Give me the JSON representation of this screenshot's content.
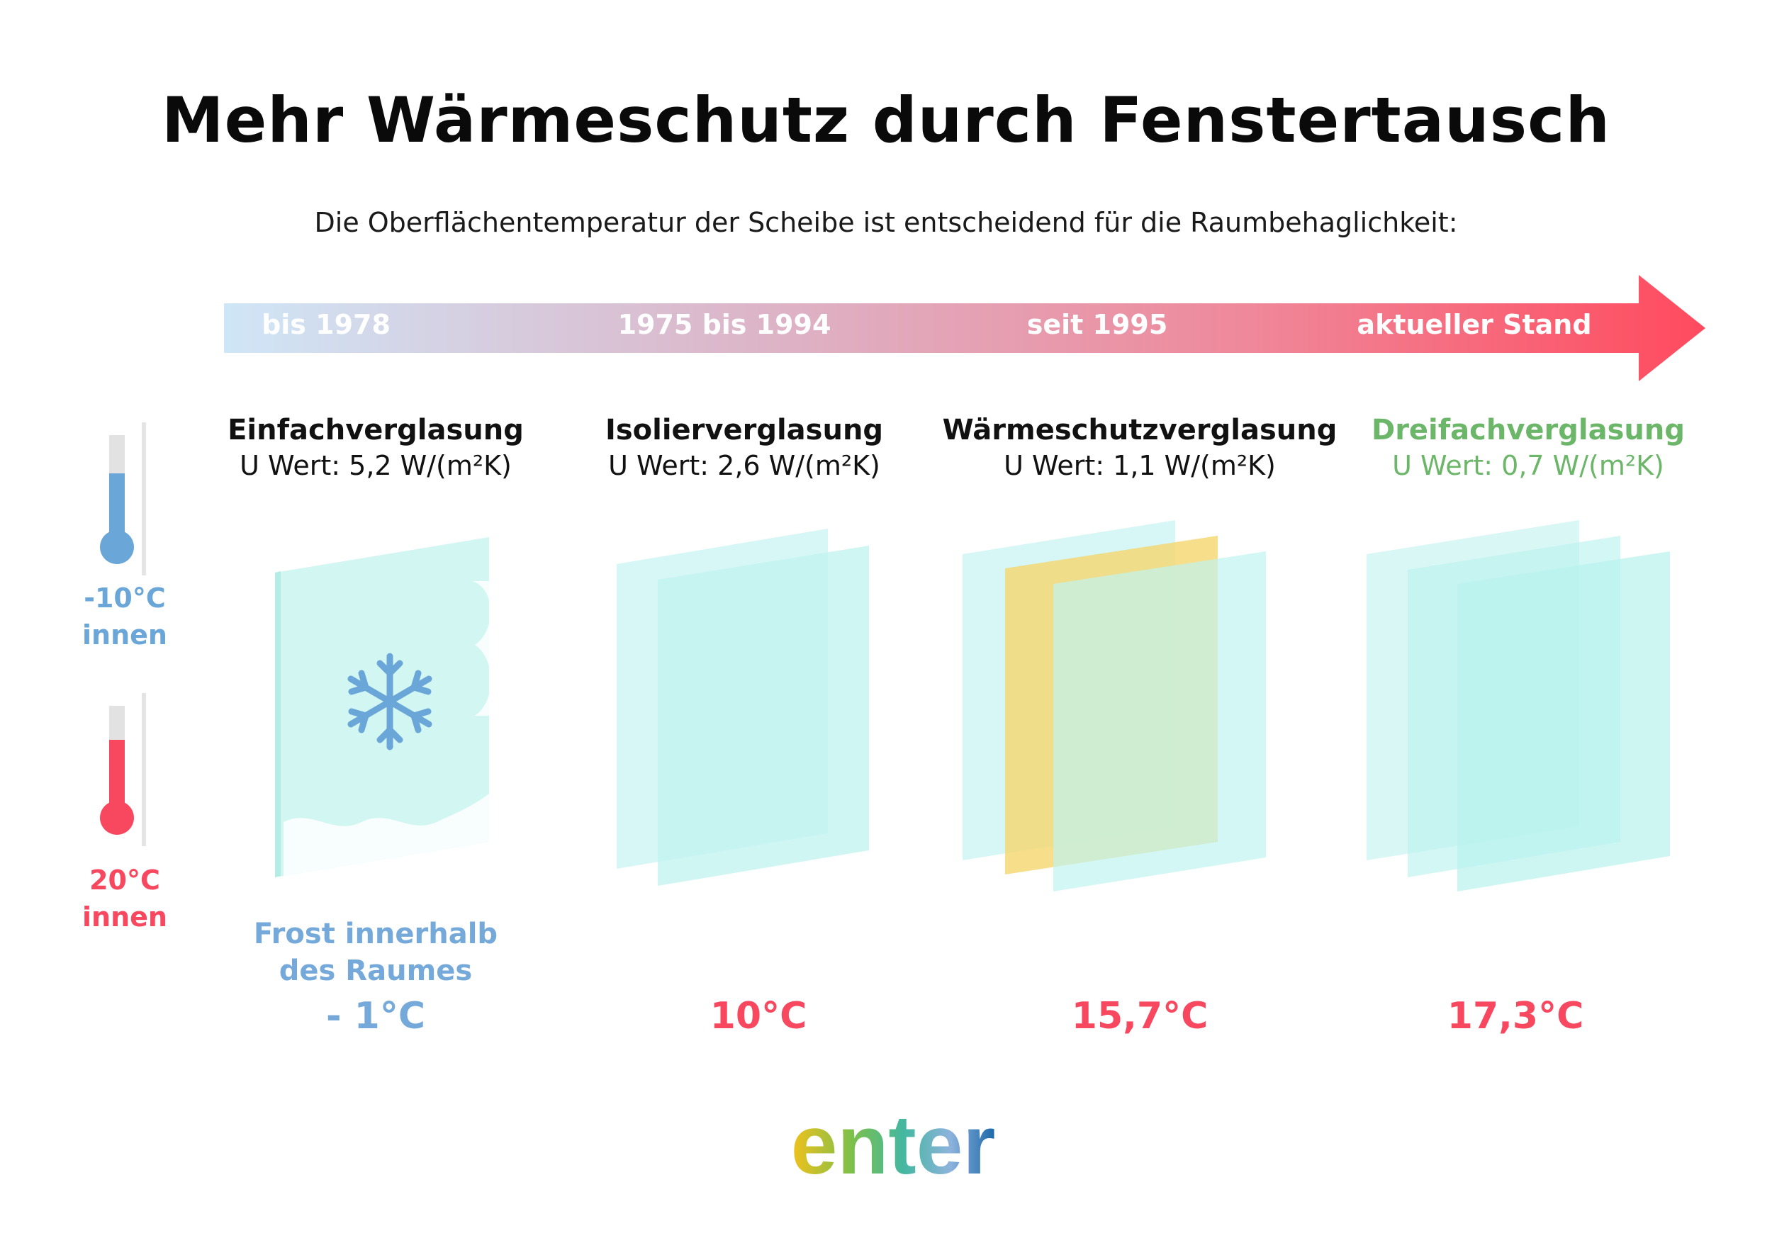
{
  "title": "Mehr Wärmeschutz durch Fenstertausch",
  "subtitle": "Die Oberflächentemperatur der Scheibe ist entscheidend für die Raumbehaglichkeit:",
  "timeline": [
    "bis 1978",
    "1975 bis 1994",
    "seit 1995",
    "aktueller Stand"
  ],
  "thermometers": [
    {
      "line1": "-10°C",
      "line2": "innen",
      "color": "#6aa6d8"
    },
    {
      "line1": "20°C",
      "line2": "innen",
      "color": "#f7485f"
    }
  ],
  "glazing": [
    {
      "name": "Einfachverglasung",
      "u_value": "U Wert: 5,2 W/(m²K)",
      "panes": 1,
      "surface_temp": "- 1°C",
      "note_line1": "Frost innerhalb",
      "note_line2": "des Raumes"
    },
    {
      "name": "Isolierverglasung",
      "u_value": "U Wert: 2,6 W/(m²K)",
      "panes": 2,
      "surface_temp": "10°C"
    },
    {
      "name": "Wärmeschutzverglasung",
      "u_value": "U Wert: 1,1 W/(m²K)",
      "panes": 3,
      "surface_temp": "15,7°C"
    },
    {
      "name": "Dreifachverglasung",
      "u_value": "U Wert: 0,7 W/(m²K)",
      "panes": 3,
      "surface_temp": "17,3°C"
    }
  ],
  "colors": {
    "cold_blue": "#74a9da",
    "warm_red": "#f7485f",
    "highlight_green": "#6cb66a",
    "glass": "#c8f4f1",
    "coating": "#f5d66e"
  },
  "logo": "enter"
}
